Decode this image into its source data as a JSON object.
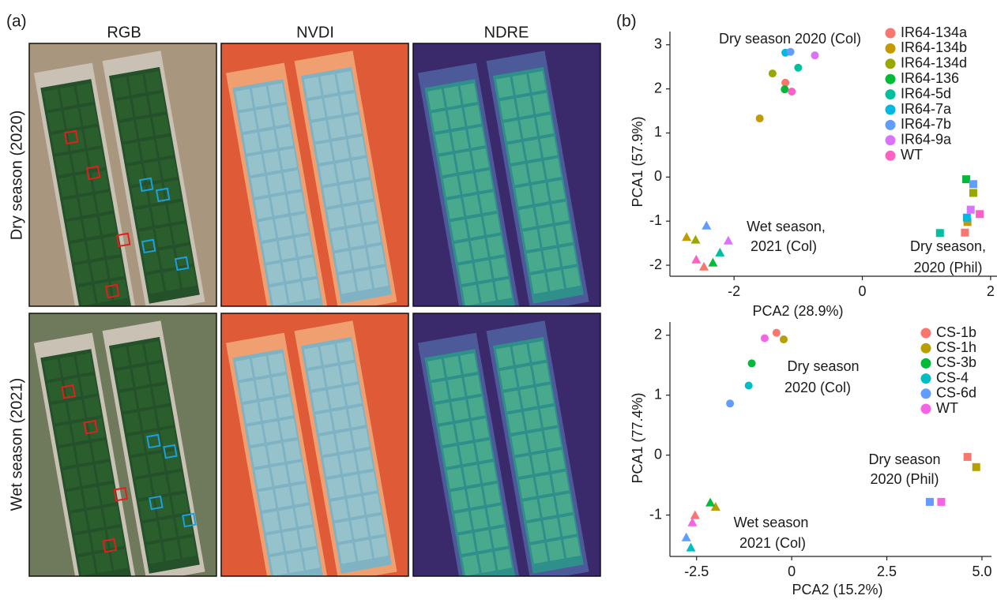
{
  "panel_a": {
    "label": "(a)",
    "columns": [
      "RGB",
      "NVDI",
      "NDRE"
    ],
    "rows": [
      "Dry season (2020)",
      "Wet season (2021)"
    ]
  },
  "panel_b_label": "(b)",
  "chart_data": [
    {
      "type": "scatter",
      "x_label": "PCA2 (28.9%)",
      "y_label": "PCA1 (57.9%)",
      "xlim": [
        -3.0,
        2.1
      ],
      "ylim": [
        -2.25,
        3.3
      ],
      "xticks": [
        -2,
        0,
        2
      ],
      "yticks": [
        -2,
        -1,
        0,
        1,
        2,
        3
      ],
      "markers": [
        "circle",
        "square",
        "triangle"
      ],
      "annotations": [
        [
          "Dry season 2020 (Col)"
        ],
        [
          "Dry season,",
          "2020 (Phil)"
        ],
        [
          "Wet season,",
          "2021 (Col)"
        ]
      ],
      "series": [
        {
          "name": "IR64-134a",
          "color": "#f8766d",
          "x": [
            -1.2,
            1.6,
            -2.47
          ],
          "y": [
            2.14,
            -1.26,
            -2.03
          ]
        },
        {
          "name": "IR64-134b",
          "color": "#c49a00",
          "x": [
            -1.6,
            1.64,
            -2.74
          ],
          "y": [
            1.33,
            -1.02,
            -1.36
          ]
        },
        {
          "name": "IR64-134d",
          "color": "#99a800",
          "x": [
            -1.4,
            1.73,
            -2.6
          ],
          "y": [
            2.35,
            -0.36,
            -1.42
          ]
        },
        {
          "name": "IR64-136",
          "color": "#00ba38",
          "x": [
            -1.21,
            1.62,
            -2.33
          ],
          "y": [
            1.99,
            -0.05,
            -1.94
          ]
        },
        {
          "name": "IR64-5d",
          "color": "#00c19f",
          "x": [
            -1.0,
            1.21,
            -2.22
          ],
          "y": [
            2.48,
            -1.27,
            -1.71
          ]
        },
        {
          "name": "IR64-7a",
          "color": "#00b9e3",
          "x": [
            -1.2,
            1.63,
            null
          ],
          "y": [
            2.82,
            -0.92,
            null
          ]
        },
        {
          "name": "IR64-7b",
          "color": "#619cff",
          "x": [
            -1.12,
            1.73,
            -2.43
          ],
          "y": [
            2.84,
            -0.16,
            -1.1
          ]
        },
        {
          "name": "IR64-9a",
          "color": "#db72fb",
          "x": [
            -0.74,
            1.69,
            -2.09
          ],
          "y": [
            2.76,
            -0.74,
            -1.44
          ]
        },
        {
          "name": "WT",
          "color": "#ff61c3",
          "x": [
            -1.1,
            1.83,
            -2.59
          ],
          "y": [
            1.94,
            -0.84,
            -1.87
          ]
        }
      ]
    },
    {
      "type": "scatter",
      "x_label": "PCA2 (15.2%)",
      "y_label": "PCA1 (77.4%)",
      "xlim": [
        -3.2,
        5.25
      ],
      "ylim": [
        -1.69,
        2.22
      ],
      "xticks": [
        -2.5,
        0,
        2.5,
        {
          "value": 5,
          "label": "5.0"
        }
      ],
      "yticks": [
        -1,
        0,
        1,
        2
      ],
      "markers": [
        "circle",
        "square",
        "triangle"
      ],
      "annotations": [
        [
          "Dry season",
          "2020 (Col)"
        ],
        [
          "Dry season",
          "2020 (Phil)"
        ],
        [
          "Wet season",
          "2021 (Col)"
        ]
      ],
      "series": [
        {
          "name": "CS-1b",
          "color": "#f8766d",
          "x": [
            -0.4,
            4.62,
            -2.54
          ],
          "y": [
            2.04,
            -0.03,
            -1.0
          ]
        },
        {
          "name": "CS-1h",
          "color": "#b79f00",
          "x": [
            -0.21,
            4.85,
            -2.0
          ],
          "y": [
            1.93,
            -0.2,
            -0.86
          ]
        },
        {
          "name": "CS-3b",
          "color": "#00ba38",
          "x": [
            -1.05,
            null,
            -2.14
          ],
          "y": [
            1.53,
            null,
            -0.79
          ]
        },
        {
          "name": "CS-4",
          "color": "#00bfc4",
          "x": [
            -1.13,
            null,
            -2.65
          ],
          "y": [
            1.16,
            null,
            -1.54
          ]
        },
        {
          "name": "CS-6d",
          "color": "#619cff",
          "x": [
            -1.62,
            3.63,
            -2.77
          ],
          "y": [
            0.86,
            -0.78,
            -1.37
          ]
        },
        {
          "name": "WT",
          "color": "#f564e3",
          "x": [
            -0.71,
            3.93,
            -2.61
          ],
          "y": [
            1.95,
            -0.78,
            -1.12
          ]
        }
      ]
    }
  ]
}
